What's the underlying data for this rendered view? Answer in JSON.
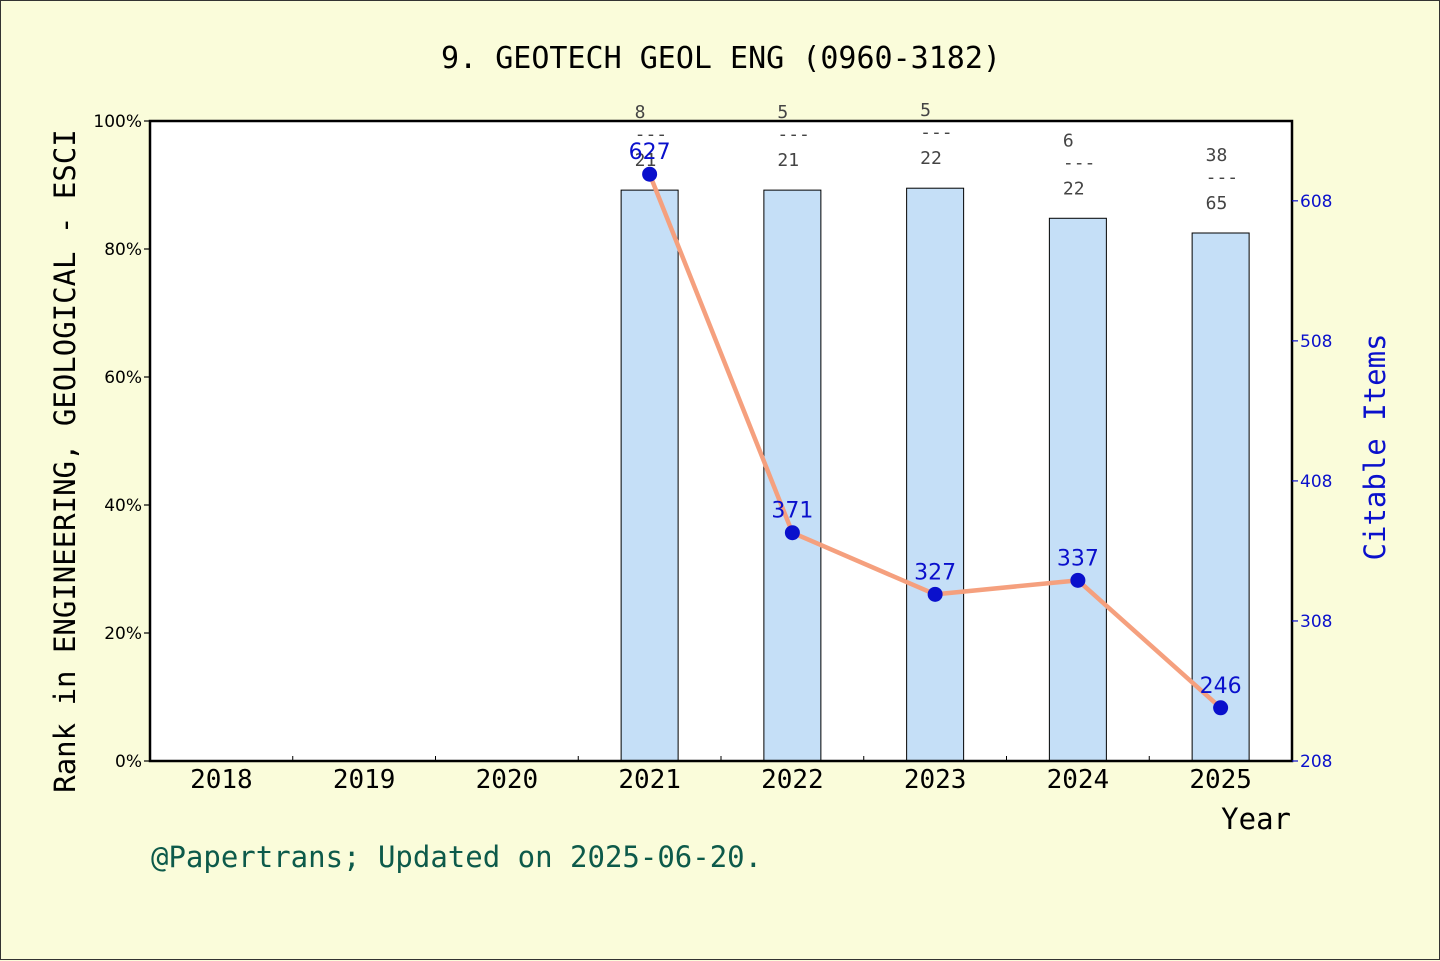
{
  "chart_data": {
    "type": "bar",
    "title": "9. GEOTECH GEOL ENG (0960-3182)",
    "xlabel": "Year",
    "ylabel": "Rank in ENGINEERING, GEOLOGICAL - ESCI",
    "y2label": "Citable Items",
    "categories": [
      "2018",
      "2019",
      "2020",
      "2021",
      "2022",
      "2023",
      "2024",
      "2025"
    ],
    "ylim": [
      0,
      100
    ],
    "yticks": [
      "0%",
      "20%",
      "40%",
      "60%",
      "80%",
      "100%"
    ],
    "y2lim": [
      208,
      665
    ],
    "y2ticks": [
      "208",
      "308",
      "408",
      "508",
      "608"
    ],
    "bars": [
      {
        "year": "2021",
        "percent": 89.2,
        "rank": "8",
        "total": "21"
      },
      {
        "year": "2022",
        "percent": 89.2,
        "rank": "5",
        "total": "21"
      },
      {
        "year": "2023",
        "percent": 89.5,
        "rank": "5",
        "total": "22"
      },
      {
        "year": "2024",
        "percent": 84.8,
        "rank": "6",
        "total": "22"
      },
      {
        "year": "2025",
        "percent": 82.5,
        "rank": "38",
        "total": "65"
      }
    ],
    "rank_separator": "---",
    "line": [
      {
        "year": "2021",
        "value": 627,
        "label": "627"
      },
      {
        "year": "2022",
        "value": 371,
        "label": "371"
      },
      {
        "year": "2023",
        "value": 327,
        "label": "327"
      },
      {
        "year": "2024",
        "value": 337,
        "label": "337"
      },
      {
        "year": "2025",
        "value": 246,
        "label": "246"
      }
    ],
    "grid": false,
    "colors": {
      "background": "#fafcda",
      "bar_fill": "#c5dff7",
      "line": "#f5a07e",
      "marker": "#0a10cc",
      "right_axis": "#0a10cc",
      "footer": "#0d5a4a"
    }
  },
  "footer": "@Papertrans; Updated on 2025-06-20."
}
